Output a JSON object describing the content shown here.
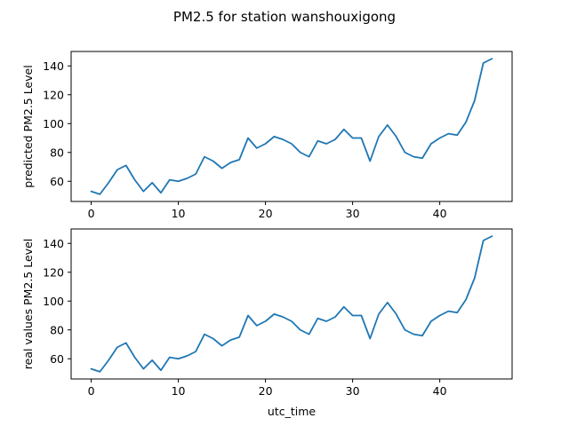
{
  "figure": {
    "title": "PM2.5 for station wanshouxigong"
  },
  "chart_data": [
    {
      "type": "line",
      "title": "",
      "xlabel": "",
      "ylabel": "predicted PM2.5 Level",
      "xlim": [
        -2.3,
        48.3
      ],
      "ylim": [
        46,
        150
      ],
      "xticks": [
        0,
        10,
        20,
        30,
        40
      ],
      "yticks": [
        60,
        80,
        100,
        120,
        140
      ],
      "grid": false,
      "color": "#1f77b4",
      "series": [
        {
          "x": [
            0,
            1,
            2,
            3,
            4,
            5,
            6,
            7,
            8,
            9,
            10,
            11,
            12,
            13,
            14,
            15,
            16,
            17,
            18,
            19,
            20,
            21,
            22,
            23,
            24,
            25,
            26,
            27,
            28,
            29,
            30,
            31,
            32,
            33,
            34,
            35,
            36,
            37,
            38,
            39,
            40,
            41,
            42,
            43,
            44,
            45,
            46
          ],
          "values": [
            53,
            51,
            59,
            68,
            71,
            61,
            53,
            59,
            52,
            61,
            60,
            62,
            65,
            77,
            74,
            69,
            73,
            75,
            90,
            83,
            86,
            91,
            89,
            86,
            80,
            77,
            88,
            86,
            89,
            96,
            90,
            90,
            74,
            91,
            99,
            91,
            80,
            77,
            76,
            86,
            90,
            93,
            92,
            101,
            116,
            142,
            145
          ]
        }
      ]
    },
    {
      "type": "line",
      "title": "",
      "xlabel": "utc_time",
      "ylabel": "real values PM2.5 Level",
      "xlim": [
        -2.3,
        48.3
      ],
      "ylim": [
        46,
        150
      ],
      "xticks": [
        0,
        10,
        20,
        30,
        40
      ],
      "yticks": [
        60,
        80,
        100,
        120,
        140
      ],
      "grid": false,
      "color": "#1f77b4",
      "series": [
        {
          "x": [
            0,
            1,
            2,
            3,
            4,
            5,
            6,
            7,
            8,
            9,
            10,
            11,
            12,
            13,
            14,
            15,
            16,
            17,
            18,
            19,
            20,
            21,
            22,
            23,
            24,
            25,
            26,
            27,
            28,
            29,
            30,
            31,
            32,
            33,
            34,
            35,
            36,
            37,
            38,
            39,
            40,
            41,
            42,
            43,
            44,
            45,
            46
          ],
          "values": [
            53,
            51,
            59,
            68,
            71,
            61,
            53,
            59,
            52,
            61,
            60,
            62,
            65,
            77,
            74,
            69,
            73,
            75,
            90,
            83,
            86,
            91,
            89,
            86,
            80,
            77,
            88,
            86,
            89,
            96,
            90,
            90,
            74,
            91,
            99,
            91,
            80,
            77,
            76,
            86,
            90,
            93,
            92,
            101,
            116,
            142,
            145
          ]
        }
      ]
    }
  ]
}
